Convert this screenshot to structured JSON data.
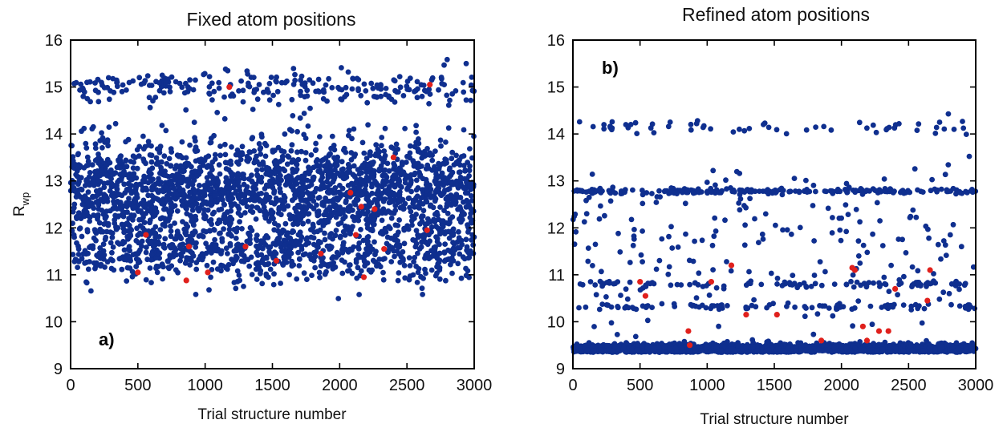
{
  "chart_data": [
    {
      "id": "a",
      "type": "scatter",
      "title": "Fixed atom positions",
      "panel_label": "a)",
      "xlabel": "Trial structure number",
      "ylabel_main": "R",
      "ylabel_sub": "wp",
      "xlim": [
        0,
        3000
      ],
      "ylim": [
        9,
        16
      ],
      "xticks": [
        0,
        500,
        1000,
        1500,
        2000,
        2500,
        3000
      ],
      "yticks": [
        9,
        10,
        11,
        12,
        13,
        14,
        15,
        16
      ],
      "grid": false,
      "series": [
        {
          "color": "#0f2f8f",
          "n_points": 3000,
          "distribution": [
            {
              "band_center": 12.8,
              "band_spread": 0.55,
              "fraction": 0.7
            },
            {
              "band_center": 11.45,
              "band_spread": 0.3,
              "fraction": 0.22
            },
            {
              "band_center": 15.0,
              "band_spread": 0.18,
              "fraction": 0.08
            }
          ]
        },
        {
          "color": "#e0201c",
          "points": [
            [
              500,
              11.05
            ],
            [
              560,
              11.85
            ],
            [
              860,
              10.88
            ],
            [
              880,
              11.6
            ],
            [
              1020,
              11.05
            ],
            [
              1180,
              15.0
            ],
            [
              1300,
              11.6
            ],
            [
              1530,
              11.3
            ],
            [
              1860,
              11.45
            ],
            [
              2080,
              12.75
            ],
            [
              2120,
              11.85
            ],
            [
              2160,
              12.45
            ],
            [
              2180,
              10.95
            ],
            [
              2260,
              12.4
            ],
            [
              2330,
              11.55
            ],
            [
              2400,
              13.5
            ],
            [
              2650,
              11.95
            ],
            [
              2670,
              15.05
            ]
          ]
        }
      ]
    },
    {
      "id": "b",
      "type": "scatter",
      "title": "Refined atom positions",
      "panel_label": "b)",
      "xlabel": "Trial structure number",
      "ylabel_main": "",
      "ylabel_sub": "",
      "xlim": [
        0,
        3000
      ],
      "ylim": [
        9,
        16
      ],
      "xticks": [
        0,
        500,
        1000,
        1500,
        2000,
        2500,
        3000
      ],
      "yticks": [
        9,
        10,
        11,
        12,
        13,
        14,
        15,
        16
      ],
      "grid": false,
      "series": [
        {
          "color": "#0f2f8f",
          "n_points": 3000,
          "distribution": [
            {
              "band_center": 9.42,
              "band_spread": 0.05,
              "fraction": 0.78
            },
            {
              "band_center": 12.78,
              "band_spread": 0.03,
              "fraction": 0.07
            },
            {
              "band_center": 10.8,
              "band_spread": 0.03,
              "fraction": 0.03
            },
            {
              "band_center": 10.32,
              "band_spread": 0.03,
              "fraction": 0.03
            },
            {
              "band_center": 14.15,
              "band_spread": 0.08,
              "fraction": 0.02
            },
            {
              "band_center": 11.5,
              "band_spread": 0.9,
              "fraction": 0.07
            }
          ]
        },
        {
          "color": "#e0201c",
          "points": [
            [
              500,
              10.85
            ],
            [
              540,
              10.55
            ],
            [
              860,
              9.8
            ],
            [
              870,
              9.5
            ],
            [
              1030,
              10.85
            ],
            [
              1180,
              11.2
            ],
            [
              1290,
              10.15
            ],
            [
              1520,
              10.15
            ],
            [
              1850,
              9.6
            ],
            [
              2080,
              11.15
            ],
            [
              2100,
              11.1
            ],
            [
              2160,
              9.9
            ],
            [
              2190,
              9.6
            ],
            [
              2280,
              9.8
            ],
            [
              2350,
              9.8
            ],
            [
              2400,
              10.7
            ],
            [
              2640,
              10.45
            ],
            [
              2660,
              11.1
            ]
          ]
        }
      ]
    }
  ]
}
